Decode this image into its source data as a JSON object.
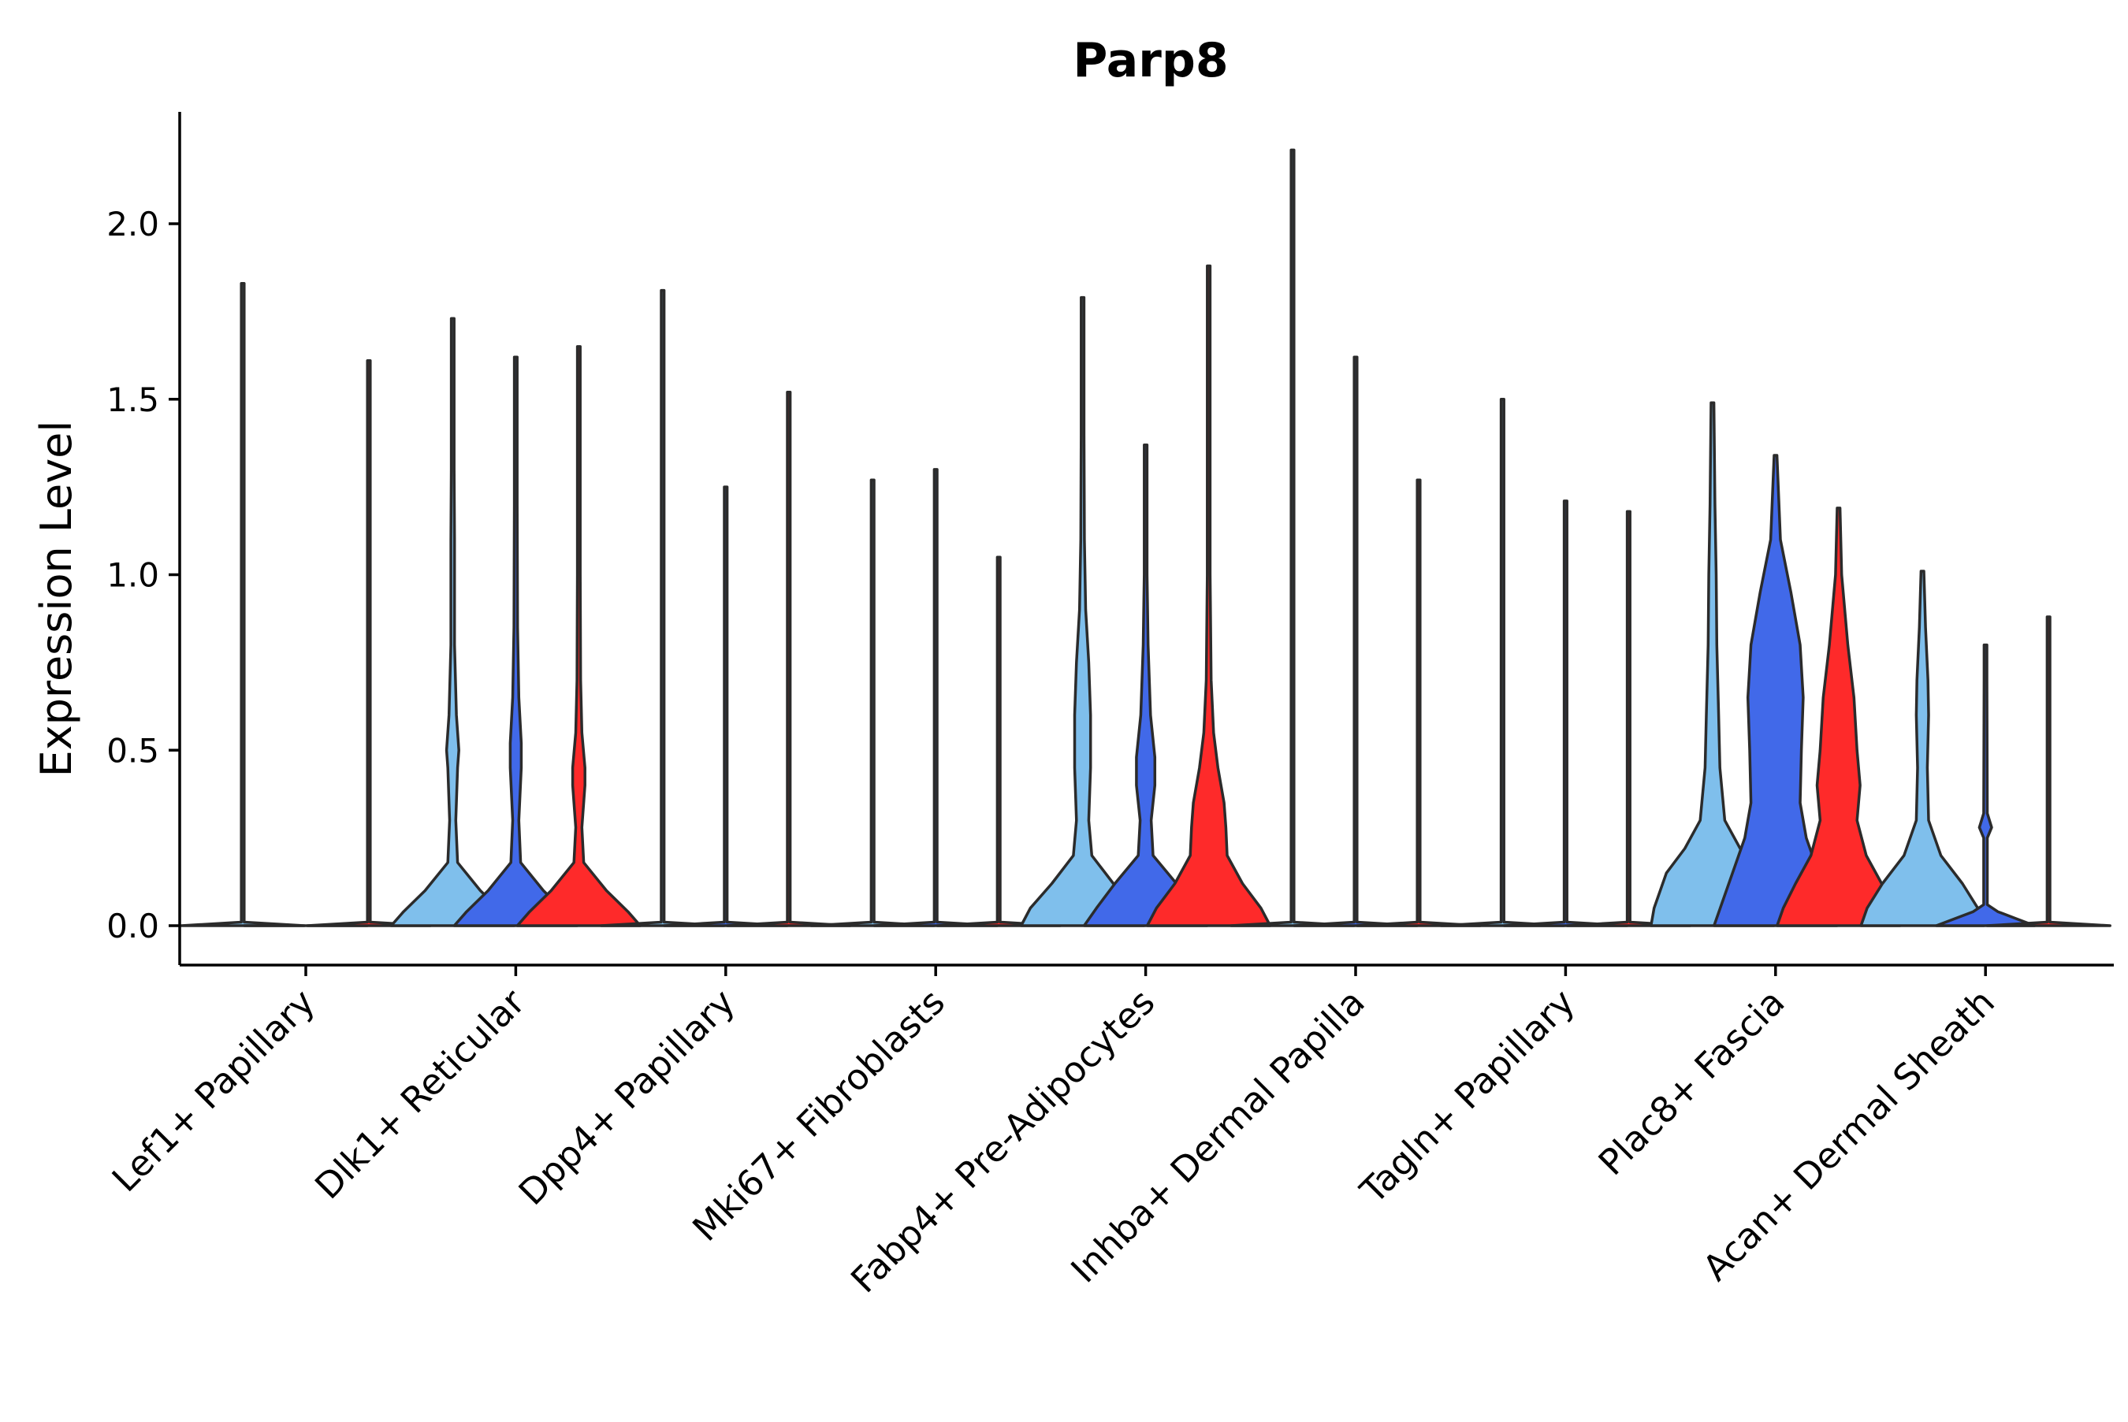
{
  "chart_data": {
    "type": "violin",
    "title": "Parp8",
    "xlabel": "",
    "ylabel": "Expression Level",
    "ylim": [
      -0.11,
      2.32
    ],
    "yticks": [
      0.0,
      0.5,
      1.0,
      1.5,
      2.0
    ],
    "ytick_labels": [
      "0.0",
      "0.5",
      "1.0",
      "1.5",
      "2.0"
    ],
    "grid": false,
    "legend": "none",
    "colors": {
      "series_1": "#7fbfec",
      "series_2": "#4169e9",
      "series_3": "#fe2a2a",
      "outline": "#2b2b2b",
      "axis": "#000000"
    },
    "series": [
      {
        "name": "group 1",
        "color": "#7fbfec"
      },
      {
        "name": "group 2",
        "color": "#4169e9"
      },
      {
        "name": "group 3",
        "color": "#fe2a2a"
      }
    ],
    "categories": [
      "Lef1+ Papillary",
      "Dlk1+ Reticular",
      "Dpp4+ Papillary",
      "Mki67+ Fibroblasts",
      "Fabp4+ Pre-Adipocytes",
      "Inhba+ Dermal Papilla",
      "Tagln+ Papillary",
      "Plac8+ Fascia",
      "Acan+ Dermal Sheath"
    ],
    "violins": [
      {
        "cluster": "Lef1+ Papillary",
        "series": 0,
        "max": 1.83,
        "profile": [
          [
            0,
            1
          ],
          [
            0.01,
            0.02
          ],
          [
            1.83,
            0
          ]
        ]
      },
      {
        "cluster": "Lef1+ Papillary",
        "series": 1,
        "max": 0.0,
        "profile": [
          [
            0,
            1
          ]
        ]
      },
      {
        "cluster": "Lef1+ Papillary",
        "series": 2,
        "max": 1.61,
        "profile": [
          [
            0,
            1
          ],
          [
            0.01,
            0.02
          ],
          [
            1.61,
            0
          ]
        ]
      },
      {
        "cluster": "Dlk1+ Reticular",
        "series": 0,
        "max": 1.73,
        "profile": [
          [
            0,
            1
          ],
          [
            0.04,
            0.8
          ],
          [
            0.1,
            0.45
          ],
          [
            0.18,
            0.08
          ],
          [
            0.3,
            0.05
          ],
          [
            0.45,
            0.08
          ],
          [
            0.5,
            0.1
          ],
          [
            0.6,
            0.06
          ],
          [
            0.8,
            0.03
          ],
          [
            1.1,
            0.03
          ],
          [
            1.3,
            0.01
          ],
          [
            1.73,
            0
          ]
        ]
      },
      {
        "cluster": "Dlk1+ Reticular",
        "series": 1,
        "max": 1.62,
        "profile": [
          [
            0,
            1
          ],
          [
            0.04,
            0.8
          ],
          [
            0.1,
            0.45
          ],
          [
            0.18,
            0.08
          ],
          [
            0.3,
            0.05
          ],
          [
            0.45,
            0.09
          ],
          [
            0.52,
            0.09
          ],
          [
            0.65,
            0.05
          ],
          [
            0.85,
            0.03
          ],
          [
            1.2,
            0.01
          ],
          [
            1.62,
            0
          ]
        ]
      },
      {
        "cluster": "Dlk1+ Reticular",
        "series": 2,
        "max": 1.65,
        "profile": [
          [
            0,
            1
          ],
          [
            0.04,
            0.8
          ],
          [
            0.1,
            0.45
          ],
          [
            0.18,
            0.08
          ],
          [
            0.28,
            0.05
          ],
          [
            0.4,
            0.1
          ],
          [
            0.45,
            0.1
          ],
          [
            0.55,
            0.05
          ],
          [
            0.7,
            0.03
          ],
          [
            1.0,
            0.02
          ],
          [
            1.2,
            0.01
          ],
          [
            1.65,
            0
          ]
        ]
      },
      {
        "cluster": "Dpp4+ Papillary",
        "series": 0,
        "max": 1.81,
        "profile": [
          [
            0,
            1
          ],
          [
            0.01,
            0.02
          ],
          [
            1.81,
            0
          ]
        ]
      },
      {
        "cluster": "Dpp4+ Papillary",
        "series": 1,
        "max": 1.25,
        "profile": [
          [
            0,
            1
          ],
          [
            0.01,
            0.02
          ],
          [
            1.25,
            0
          ]
        ]
      },
      {
        "cluster": "Dpp4+ Papillary",
        "series": 2,
        "max": 1.52,
        "profile": [
          [
            0,
            1
          ],
          [
            0.01,
            0.02
          ],
          [
            1.52,
            0
          ]
        ]
      },
      {
        "cluster": "Mki67+ Fibroblasts",
        "series": 0,
        "max": 1.27,
        "profile": [
          [
            0,
            1
          ],
          [
            0.01,
            0.02
          ],
          [
            1.27,
            0
          ]
        ]
      },
      {
        "cluster": "Mki67+ Fibroblasts",
        "series": 1,
        "max": 1.3,
        "profile": [
          [
            0,
            1
          ],
          [
            0.01,
            0.02
          ],
          [
            1.3,
            0
          ]
        ]
      },
      {
        "cluster": "Mki67+ Fibroblasts",
        "series": 2,
        "max": 1.05,
        "profile": [
          [
            0,
            1
          ],
          [
            0.01,
            0.02
          ],
          [
            1.05,
            0
          ]
        ]
      },
      {
        "cluster": "Fabp4+ Pre-Adipocytes",
        "series": 0,
        "max": 1.79,
        "profile": [
          [
            0,
            1
          ],
          [
            0.05,
            0.85
          ],
          [
            0.12,
            0.5
          ],
          [
            0.2,
            0.15
          ],
          [
            0.3,
            0.1
          ],
          [
            0.45,
            0.13
          ],
          [
            0.6,
            0.13
          ],
          [
            0.75,
            0.1
          ],
          [
            0.9,
            0.05
          ],
          [
            1.1,
            0.03
          ],
          [
            1.4,
            0.01
          ],
          [
            1.79,
            0
          ]
        ]
      },
      {
        "cluster": "Fabp4+ Pre-Adipocytes",
        "series": 1,
        "max": 1.37,
        "profile": [
          [
            0,
            1
          ],
          [
            0.05,
            0.8
          ],
          [
            0.12,
            0.5
          ],
          [
            0.2,
            0.12
          ],
          [
            0.3,
            0.09
          ],
          [
            0.4,
            0.15
          ],
          [
            0.48,
            0.15
          ],
          [
            0.6,
            0.08
          ],
          [
            0.8,
            0.04
          ],
          [
            1.0,
            0.02
          ],
          [
            1.37,
            0
          ]
        ]
      },
      {
        "cluster": "Fabp4+ Pre-Adipocytes",
        "series": 2,
        "max": 1.88,
        "profile": [
          [
            0,
            1
          ],
          [
            0.05,
            0.85
          ],
          [
            0.12,
            0.55
          ],
          [
            0.2,
            0.3
          ],
          [
            0.28,
            0.28
          ],
          [
            0.35,
            0.25
          ],
          [
            0.45,
            0.15
          ],
          [
            0.55,
            0.08
          ],
          [
            0.7,
            0.04
          ],
          [
            1.0,
            0.02
          ],
          [
            1.3,
            0.01
          ],
          [
            1.88,
            0
          ]
        ]
      },
      {
        "cluster": "Inhba+ Dermal Papilla",
        "series": 0,
        "max": 2.21,
        "profile": [
          [
            0,
            1
          ],
          [
            0.01,
            0.02
          ],
          [
            2.21,
            0
          ]
        ]
      },
      {
        "cluster": "Inhba+ Dermal Papilla",
        "series": 1,
        "max": 1.62,
        "profile": [
          [
            0,
            1
          ],
          [
            0.01,
            0.02
          ],
          [
            1.62,
            0
          ]
        ]
      },
      {
        "cluster": "Inhba+ Dermal Papilla",
        "series": 2,
        "max": 1.27,
        "profile": [
          [
            0,
            1
          ],
          [
            0.01,
            0.02
          ],
          [
            1.27,
            0
          ]
        ]
      },
      {
        "cluster": "Tagln+ Papillary",
        "series": 0,
        "max": 1.5,
        "profile": [
          [
            0,
            1
          ],
          [
            0.01,
            0.02
          ],
          [
            1.5,
            0
          ]
        ]
      },
      {
        "cluster": "Tagln+ Papillary",
        "series": 1,
        "max": 1.21,
        "profile": [
          [
            0,
            1
          ],
          [
            0.01,
            0.02
          ],
          [
            1.21,
            0
          ]
        ]
      },
      {
        "cluster": "Tagln+ Papillary",
        "series": 2,
        "max": 1.18,
        "profile": [
          [
            0,
            1
          ],
          [
            0.01,
            0.02
          ],
          [
            1.18,
            0
          ]
        ]
      },
      {
        "cluster": "Plac8+ Fascia",
        "series": 0,
        "max": 1.49,
        "profile": [
          [
            0,
            1
          ],
          [
            0.05,
            0.95
          ],
          [
            0.15,
            0.75
          ],
          [
            0.22,
            0.45
          ],
          [
            0.3,
            0.2
          ],
          [
            0.45,
            0.12
          ],
          [
            0.6,
            0.1
          ],
          [
            0.8,
            0.07
          ],
          [
            1.0,
            0.06
          ],
          [
            1.2,
            0.04
          ],
          [
            1.49,
            0
          ]
        ]
      },
      {
        "cluster": "Plac8+ Fascia",
        "series": 1,
        "max": 1.34,
        "profile": [
          [
            0,
            1
          ],
          [
            0.05,
            0.9
          ],
          [
            0.15,
            0.7
          ],
          [
            0.25,
            0.5
          ],
          [
            0.35,
            0.4
          ],
          [
            0.5,
            0.42
          ],
          [
            0.65,
            0.45
          ],
          [
            0.8,
            0.4
          ],
          [
            0.95,
            0.25
          ],
          [
            1.1,
            0.08
          ],
          [
            1.34,
            0
          ]
        ]
      },
      {
        "cluster": "Plac8+ Fascia",
        "series": 2,
        "max": 1.19,
        "profile": [
          [
            0,
            1
          ],
          [
            0.05,
            0.9
          ],
          [
            0.12,
            0.7
          ],
          [
            0.2,
            0.45
          ],
          [
            0.3,
            0.3
          ],
          [
            0.4,
            0.35
          ],
          [
            0.5,
            0.3
          ],
          [
            0.65,
            0.25
          ],
          [
            0.8,
            0.15
          ],
          [
            1.0,
            0.05
          ],
          [
            1.19,
            0
          ]
        ]
      },
      {
        "cluster": "Acan+ Dermal Sheath",
        "series": 0,
        "max": 1.01,
        "profile": [
          [
            0,
            1
          ],
          [
            0.05,
            0.9
          ],
          [
            0.12,
            0.65
          ],
          [
            0.2,
            0.3
          ],
          [
            0.3,
            0.1
          ],
          [
            0.45,
            0.08
          ],
          [
            0.6,
            0.1
          ],
          [
            0.7,
            0.09
          ],
          [
            0.85,
            0.05
          ],
          [
            1.01,
            0
          ]
        ]
      },
      {
        "cluster": "Acan+ Dermal Sheath",
        "series": 1,
        "max": 0.8,
        "profile": [
          [
            0,
            0.8
          ],
          [
            0.02,
            0.5
          ],
          [
            0.04,
            0.2
          ],
          [
            0.06,
            0.03
          ],
          [
            0.25,
            0.03
          ],
          [
            0.28,
            0.1
          ],
          [
            0.32,
            0.03
          ],
          [
            0.7,
            0.02
          ],
          [
            0.8,
            0
          ]
        ]
      },
      {
        "cluster": "Acan+ Dermal Sheath",
        "series": 2,
        "max": 0.88,
        "profile": [
          [
            0,
            1
          ],
          [
            0.01,
            0.02
          ],
          [
            0.88,
            0
          ]
        ]
      }
    ]
  }
}
